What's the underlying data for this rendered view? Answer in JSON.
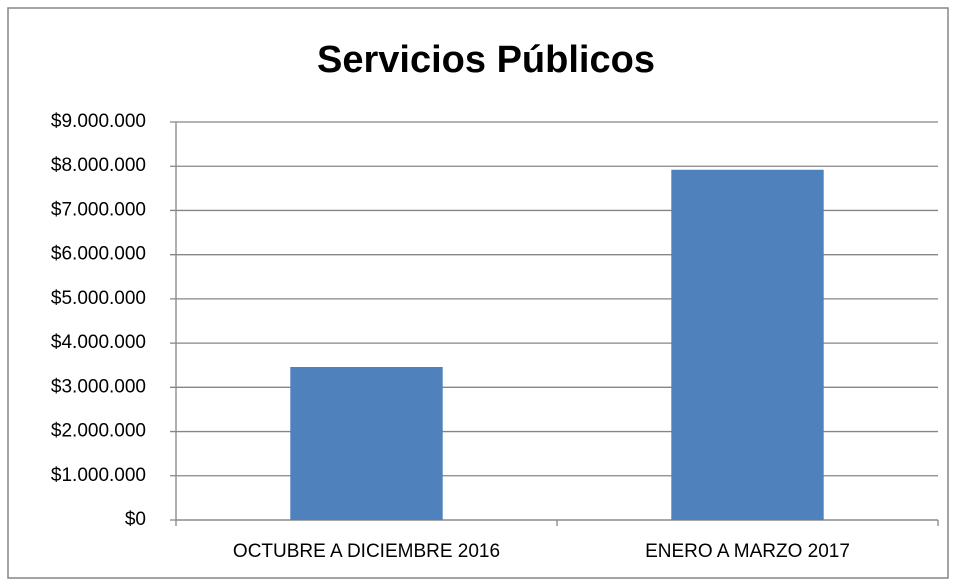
{
  "chart_data": {
    "type": "bar",
    "title": "Servicios Públicos",
    "categories": [
      "OCTUBRE A DICIEMBRE 2016",
      "ENERO A MARZO 2017"
    ],
    "values": [
      3460000,
      7920000
    ],
    "color": "#4f81bd",
    "ylim": [
      0,
      9000000
    ],
    "yticks": [
      {
        "value": 0,
        "label": "$0"
      },
      {
        "value": 1000000,
        "label": "$1.000.000"
      },
      {
        "value": 2000000,
        "label": "$2.000.000"
      },
      {
        "value": 3000000,
        "label": "$3.000.000"
      },
      {
        "value": 4000000,
        "label": "$4.000.000"
      },
      {
        "value": 5000000,
        "label": "$5.000.000"
      },
      {
        "value": 6000000,
        "label": "$6.000.000"
      },
      {
        "value": 7000000,
        "label": "$7.000.000"
      },
      {
        "value": 8000000,
        "label": "$8.000.000"
      },
      {
        "value": 9000000,
        "label": "$9.000.000"
      }
    ],
    "grid": true
  }
}
